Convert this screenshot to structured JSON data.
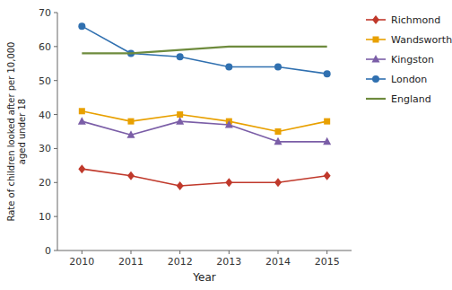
{
  "chart_data": {
    "type": "line",
    "x": [
      2010,
      2011,
      2012,
      2013,
      2014,
      2015
    ],
    "xlabel": "Year",
    "ylabel": "Rate of children looked after per 10,000\naged under 18",
    "xlim": [
      2009.5,
      2015.5
    ],
    "xticks": [
      2010,
      2011,
      2012,
      2013,
      2014,
      2015
    ],
    "ylim": [
      0,
      70
    ],
    "yticks": [
      0,
      10,
      20,
      30,
      40,
      50,
      60,
      70
    ],
    "grid": false,
    "legend": "right",
    "series": [
      {
        "name": "Richmond",
        "color": "#c0392b",
        "marker": "diamond",
        "values": [
          24,
          22,
          19,
          20,
          20,
          22
        ]
      },
      {
        "name": "Wandsworth",
        "color": "#e8a000",
        "marker": "square",
        "values": [
          41,
          38,
          40,
          38,
          35,
          38
        ]
      },
      {
        "name": "Kingston",
        "color": "#7b5ea7",
        "marker": "triangle",
        "values": [
          38,
          34,
          38,
          37,
          32,
          32
        ]
      },
      {
        "name": "London",
        "color": "#3070b0",
        "marker": "circle",
        "values": [
          66,
          58,
          57,
          54,
          54,
          52
        ]
      },
      {
        "name": "England",
        "color": "#6e8b3d",
        "values": [
          58,
          58,
          59,
          60,
          60,
          60
        ]
      }
    ]
  }
}
